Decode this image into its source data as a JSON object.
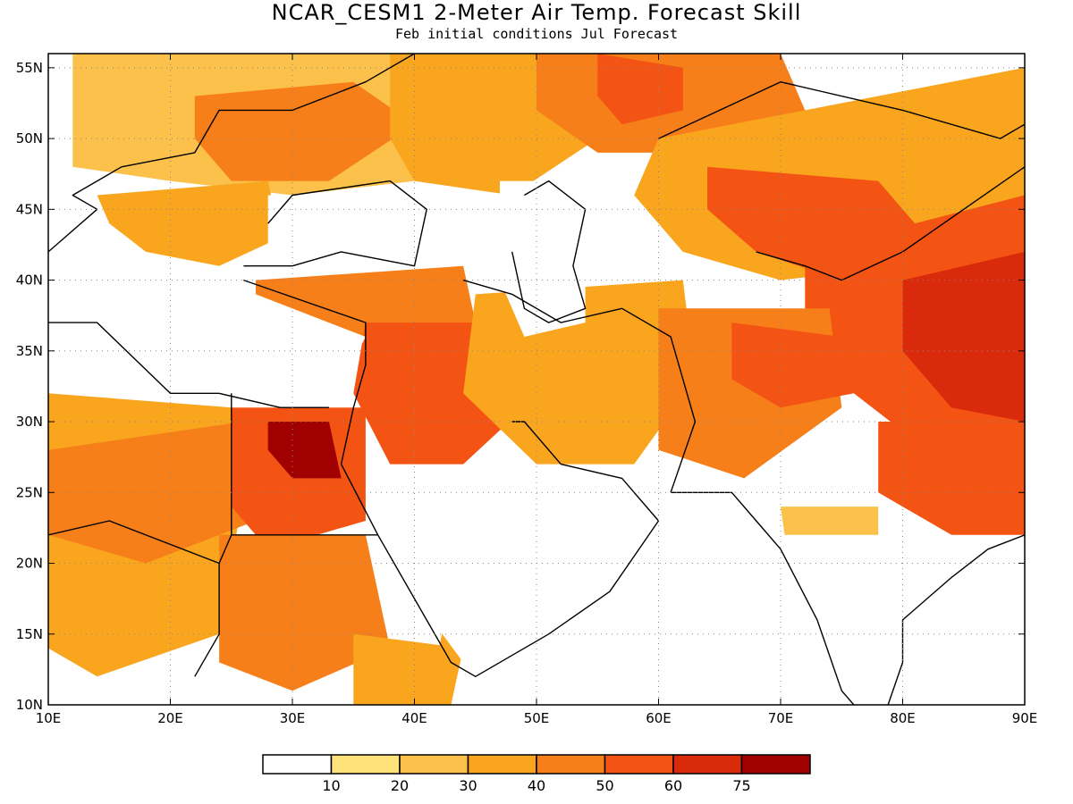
{
  "title": "NCAR_CESM1 2-Meter Air Temp. Forecast Skill",
  "subtitle": "Feb initial conditions  Jul Forecast",
  "map": {
    "lon_range": [
      10,
      90
    ],
    "lat_range": [
      10,
      56
    ],
    "x_ticks": [
      "10E",
      "20E",
      "30E",
      "40E",
      "50E",
      "60E",
      "70E",
      "80E",
      "90E"
    ],
    "x_tick_values": [
      10,
      20,
      30,
      40,
      50,
      60,
      70,
      80,
      90
    ],
    "y_ticks": [
      "10N",
      "15N",
      "20N",
      "25N",
      "30N",
      "35N",
      "40N",
      "45N",
      "50N",
      "55N"
    ],
    "y_tick_values": [
      10,
      15,
      20,
      25,
      30,
      35,
      40,
      45,
      50,
      55
    ],
    "grid": "dotted",
    "colors": {
      "0": "#ffffff",
      "10": "#ffe27a",
      "20": "#fbc14b",
      "30": "#f9a51e",
      "40": "#f77f1a",
      "50": "#f35313",
      "60": "#da2a0c",
      "75": "#a00000"
    },
    "regions": [
      {
        "name": "europe-north",
        "level": 20,
        "poly": [
          [
            12,
            56
          ],
          [
            45,
            56
          ],
          [
            45,
            50
          ],
          [
            40,
            47
          ],
          [
            30,
            46
          ],
          [
            20,
            47
          ],
          [
            12,
            48
          ]
        ]
      },
      {
        "name": "europe-central",
        "level": 40,
        "poly": [
          [
            22,
            53
          ],
          [
            35,
            54
          ],
          [
            40,
            51
          ],
          [
            33,
            47
          ],
          [
            25,
            47
          ],
          [
            22,
            50
          ]
        ]
      },
      {
        "name": "balkans",
        "level": 30,
        "poly": [
          [
            14,
            46
          ],
          [
            28,
            47
          ],
          [
            29,
            43
          ],
          [
            24,
            41
          ],
          [
            18,
            42
          ],
          [
            15,
            44
          ]
        ]
      },
      {
        "name": "russia-west",
        "level": 30,
        "poly": [
          [
            38,
            56
          ],
          [
            56,
            56
          ],
          [
            55,
            50
          ],
          [
            48,
            46
          ],
          [
            40,
            47
          ],
          [
            38,
            50
          ]
        ]
      },
      {
        "name": "kazakh-north",
        "level": 40,
        "poly": [
          [
            50,
            56
          ],
          [
            70,
            56
          ],
          [
            72,
            52
          ],
          [
            65,
            49
          ],
          [
            55,
            49
          ],
          [
            50,
            52
          ]
        ]
      },
      {
        "name": "kazakh-core",
        "level": 50,
        "poly": [
          [
            55,
            56
          ],
          [
            62,
            55
          ],
          [
            62,
            52
          ],
          [
            57,
            51
          ],
          [
            55,
            53
          ]
        ]
      },
      {
        "name": "central-asia",
        "level": 30,
        "poly": [
          [
            60,
            50
          ],
          [
            90,
            55
          ],
          [
            90,
            43
          ],
          [
            80,
            41
          ],
          [
            70,
            40
          ],
          [
            62,
            42
          ],
          [
            58,
            46
          ]
        ]
      },
      {
        "name": "central-asia-hot",
        "level": 50,
        "poly": [
          [
            64,
            48
          ],
          [
            78,
            47
          ],
          [
            82,
            43
          ],
          [
            75,
            40
          ],
          [
            68,
            42
          ],
          [
            64,
            45
          ]
        ]
      },
      {
        "name": "tibet",
        "level": 50,
        "poly": [
          [
            72,
            42
          ],
          [
            90,
            46
          ],
          [
            90,
            28
          ],
          [
            82,
            28
          ],
          [
            76,
            32
          ],
          [
            72,
            36
          ]
        ]
      },
      {
        "name": "tibet-core",
        "level": 60,
        "poly": [
          [
            80,
            40
          ],
          [
            90,
            42
          ],
          [
            90,
            30
          ],
          [
            84,
            31
          ],
          [
            80,
            35
          ]
        ]
      },
      {
        "name": "anatolia",
        "level": 40,
        "poly": [
          [
            27,
            40
          ],
          [
            44,
            41
          ],
          [
            45,
            37
          ],
          [
            36,
            36
          ],
          [
            27,
            37
          ]
        ]
      },
      {
        "name": "levant-iraq",
        "level": 50,
        "poly": [
          [
            36,
            37
          ],
          [
            47,
            37
          ],
          [
            49,
            31
          ],
          [
            44,
            27
          ],
          [
            38,
            27
          ],
          [
            35,
            32
          ]
        ]
      },
      {
        "name": "iran",
        "level": 30,
        "poly": [
          [
            45,
            39
          ],
          [
            62,
            40
          ],
          [
            63,
            33
          ],
          [
            58,
            27
          ],
          [
            50,
            27
          ],
          [
            44,
            32
          ]
        ]
      },
      {
        "name": "afghan",
        "level": 40,
        "poly": [
          [
            60,
            38
          ],
          [
            74,
            38
          ],
          [
            75,
            31
          ],
          [
            67,
            26
          ],
          [
            60,
            28
          ]
        ]
      },
      {
        "name": "pakistan-north",
        "level": 50,
        "poly": [
          [
            66,
            37
          ],
          [
            75,
            36
          ],
          [
            76,
            32
          ],
          [
            70,
            31
          ],
          [
            66,
            33
          ]
        ]
      },
      {
        "name": "sahara-west",
        "level": 30,
        "poly": [
          [
            10,
            32
          ],
          [
            25,
            31
          ],
          [
            26,
            25
          ],
          [
            24,
            15
          ],
          [
            14,
            12
          ],
          [
            10,
            14
          ]
        ]
      },
      {
        "name": "libya",
        "level": 40,
        "poly": [
          [
            10,
            28
          ],
          [
            26,
            30
          ],
          [
            27,
            23
          ],
          [
            18,
            20
          ],
          [
            10,
            22
          ]
        ]
      },
      {
        "name": "egypt",
        "level": 50,
        "poly": [
          [
            25,
            31
          ],
          [
            36,
            31
          ],
          [
            36,
            23
          ],
          [
            28,
            21
          ],
          [
            25,
            24
          ]
        ]
      },
      {
        "name": "egypt-core",
        "level": 75,
        "poly": [
          [
            28,
            30
          ],
          [
            33,
            30
          ],
          [
            34,
            26
          ],
          [
            30,
            26
          ],
          [
            28,
            28
          ]
        ]
      },
      {
        "name": "sudan",
        "level": 40,
        "poly": [
          [
            24,
            22
          ],
          [
            36,
            22
          ],
          [
            38,
            14
          ],
          [
            30,
            11
          ],
          [
            24,
            13
          ]
        ]
      },
      {
        "name": "horn",
        "level": 30,
        "poly": [
          [
            35,
            15
          ],
          [
            44,
            14
          ],
          [
            43,
            10
          ],
          [
            35,
            10
          ]
        ]
      },
      {
        "name": "arabia-south",
        "level": 30,
        "poly": [
          [
            43,
            18
          ],
          [
            53,
            19
          ],
          [
            54,
            15
          ],
          [
            46,
            13
          ],
          [
            42,
            14
          ]
        ]
      },
      {
        "name": "india-west",
        "level": 20,
        "poly": [
          [
            70,
            24
          ],
          [
            78,
            24
          ],
          [
            78,
            16
          ],
          [
            74,
            12
          ],
          [
            71,
            18
          ]
        ]
      },
      {
        "name": "india-north",
        "level": 50,
        "poly": [
          [
            78,
            30
          ],
          [
            90,
            30
          ],
          [
            90,
            21
          ],
          [
            84,
            22
          ],
          [
            78,
            25
          ]
        ]
      }
    ],
    "blanks": [
      {
        "name": "black-sea",
        "poly": [
          [
            28,
            46
          ],
          [
            41,
            46
          ],
          [
            41,
            41
          ],
          [
            28,
            41
          ]
        ]
      },
      {
        "name": "caspian",
        "poly": [
          [
            47,
            47
          ],
          [
            54,
            47
          ],
          [
            54,
            37
          ],
          [
            49,
            36
          ],
          [
            47,
            40
          ]
        ]
      },
      {
        "name": "med",
        "poly": [
          [
            10,
            40
          ],
          [
            27,
            39
          ],
          [
            36,
            36
          ],
          [
            33,
            31
          ],
          [
            10,
            33
          ]
        ]
      },
      {
        "name": "arabia",
        "poly": [
          [
            37,
            26
          ],
          [
            55,
            27
          ],
          [
            60,
            22
          ],
          [
            56,
            16
          ],
          [
            44,
            13
          ],
          [
            38,
            20
          ]
        ]
      },
      {
        "name": "india-south",
        "poly": [
          [
            70,
            22
          ],
          [
            90,
            22
          ],
          [
            90,
            10
          ],
          [
            78,
            8
          ],
          [
            72,
            12
          ]
        ]
      },
      {
        "name": "arabian-sea",
        "poly": [
          [
            50,
            22
          ],
          [
            70,
            22
          ],
          [
            72,
            10
          ],
          [
            45,
            10
          ],
          [
            45,
            14
          ]
        ]
      }
    ],
    "borders": [
      [
        [
          10,
          42
        ],
        [
          14,
          45
        ],
        [
          12,
          46
        ],
        [
          16,
          48
        ],
        [
          22,
          49
        ],
        [
          24,
          52
        ],
        [
          30,
          52
        ],
        [
          36,
          54
        ],
        [
          40,
          56
        ]
      ],
      [
        [
          26,
          41
        ],
        [
          30,
          41
        ],
        [
          34,
          42
        ],
        [
          40,
          41
        ],
        [
          41,
          45
        ],
        [
          38,
          47
        ],
        [
          30,
          46
        ],
        [
          28,
          44
        ]
      ],
      [
        [
          26,
          40
        ],
        [
          36,
          37
        ],
        [
          36,
          34
        ],
        [
          35,
          31
        ],
        [
          34,
          27
        ],
        [
          37,
          22
        ],
        [
          43,
          13
        ],
        [
          45,
          12
        ],
        [
          51,
          15
        ],
        [
          56,
          18
        ],
        [
          60,
          23
        ],
        [
          57,
          26
        ],
        [
          52,
          27
        ],
        [
          49,
          30
        ],
        [
          48,
          30
        ]
      ],
      [
        [
          49,
          46
        ],
        [
          51,
          47
        ],
        [
          54,
          45
        ],
        [
          53,
          41
        ],
        [
          54,
          38
        ],
        [
          51,
          37
        ],
        [
          49,
          38
        ],
        [
          48,
          42
        ]
      ],
      [
        [
          44,
          40
        ],
        [
          48,
          39
        ],
        [
          52,
          37
        ],
        [
          57,
          38
        ],
        [
          61,
          36
        ],
        [
          63,
          30
        ],
        [
          61,
          25
        ]
      ],
      [
        [
          61,
          25
        ],
        [
          66,
          25
        ],
        [
          68,
          23
        ],
        [
          70,
          21
        ],
        [
          73,
          16
        ],
        [
          75,
          11
        ],
        [
          78,
          8
        ]
      ],
      [
        [
          78,
          8
        ],
        [
          80,
          13
        ],
        [
          80,
          16
        ],
        [
          84,
          19
        ],
        [
          87,
          21
        ],
        [
          90,
          22
        ]
      ],
      [
        [
          10,
          37
        ],
        [
          14,
          37
        ],
        [
          20,
          32
        ],
        [
          24,
          32
        ],
        [
          29,
          31
        ],
        [
          33,
          31
        ]
      ],
      [
        [
          25,
          32
        ],
        [
          25,
          22
        ],
        [
          24,
          20
        ],
        [
          24,
          15
        ],
        [
          22,
          12
        ]
      ],
      [
        [
          25,
          22
        ],
        [
          37,
          22
        ]
      ],
      [
        [
          10,
          22
        ],
        [
          15,
          23
        ],
        [
          24,
          20
        ]
      ],
      [
        [
          68,
          42
        ],
        [
          72,
          41
        ],
        [
          75,
          40
        ],
        [
          80,
          42
        ],
        [
          85,
          45
        ],
        [
          90,
          48
        ]
      ],
      [
        [
          60,
          50
        ],
        [
          70,
          54
        ],
        [
          80,
          52
        ],
        [
          88,
          50
        ],
        [
          90,
          51
        ]
      ]
    ]
  },
  "colorbar": {
    "labels": [
      "10",
      "20",
      "30",
      "40",
      "50",
      "60",
      "75"
    ],
    "colors": [
      "#ffffff",
      "#ffe27a",
      "#fbc14b",
      "#f9a51e",
      "#f77f1a",
      "#f35313",
      "#da2a0c",
      "#a00000"
    ]
  }
}
